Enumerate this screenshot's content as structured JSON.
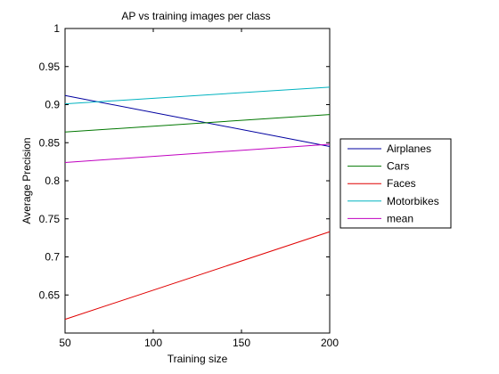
{
  "chart_data": {
    "type": "line",
    "title": "AP vs training images per class",
    "xlabel": "Training size",
    "ylabel": "Average Precision",
    "xlim": [
      50,
      200
    ],
    "ylim": [
      0.6,
      1.0
    ],
    "xticks": [
      50,
      100,
      150,
      200
    ],
    "xtick_labels": [
      "50",
      "100",
      "150",
      "200"
    ],
    "yticks": [
      0.65,
      0.7,
      0.75,
      0.8,
      0.85,
      0.9,
      0.95,
      1.0
    ],
    "ytick_labels": [
      "0.65",
      "0.7",
      "0.75",
      "0.8",
      "0.85",
      "0.9",
      "0.95",
      "1"
    ],
    "grid": false,
    "legend_position": "outside-right",
    "x": [
      50,
      200
    ],
    "series": [
      {
        "name": "Airplanes",
        "color": "#0000a0",
        "values": [
          0.912,
          0.845
        ]
      },
      {
        "name": "Cars",
        "color": "#007700",
        "values": [
          0.864,
          0.887
        ]
      },
      {
        "name": "Faces",
        "color": "#e00000",
        "values": [
          0.618,
          0.733
        ]
      },
      {
        "name": "Motorbikes",
        "color": "#00b3c0",
        "values": [
          0.901,
          0.923
        ]
      },
      {
        "name": "mean",
        "color": "#c000c0",
        "values": [
          0.824,
          0.848
        ]
      }
    ]
  }
}
